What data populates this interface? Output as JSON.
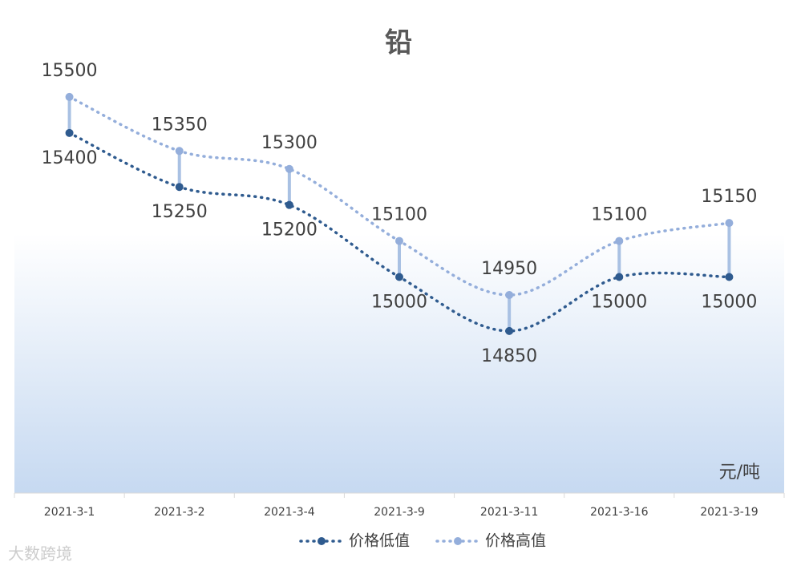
{
  "chart_data": {
    "type": "line",
    "title": "铅",
    "categories": [
      "2021-3-1",
      "2021-3-2",
      "2021-3-4",
      "2021-3-9",
      "2021-3-11",
      "2021-3-16",
      "2021-3-19"
    ],
    "series": [
      {
        "name": "价格低值",
        "color": "#2f5b8f",
        "values": [
          15400,
          15250,
          15200,
          15000,
          14850,
          15000,
          15000
        ]
      },
      {
        "name": "价格高值",
        "color": "#94aedb",
        "values": [
          15500,
          15350,
          15300,
          15100,
          14950,
          15100,
          15150
        ]
      }
    ],
    "ylim": [
      14400,
      15600
    ],
    "unit_label": "元/吨",
    "watermark": "大数跨境",
    "legend": "bottom"
  }
}
